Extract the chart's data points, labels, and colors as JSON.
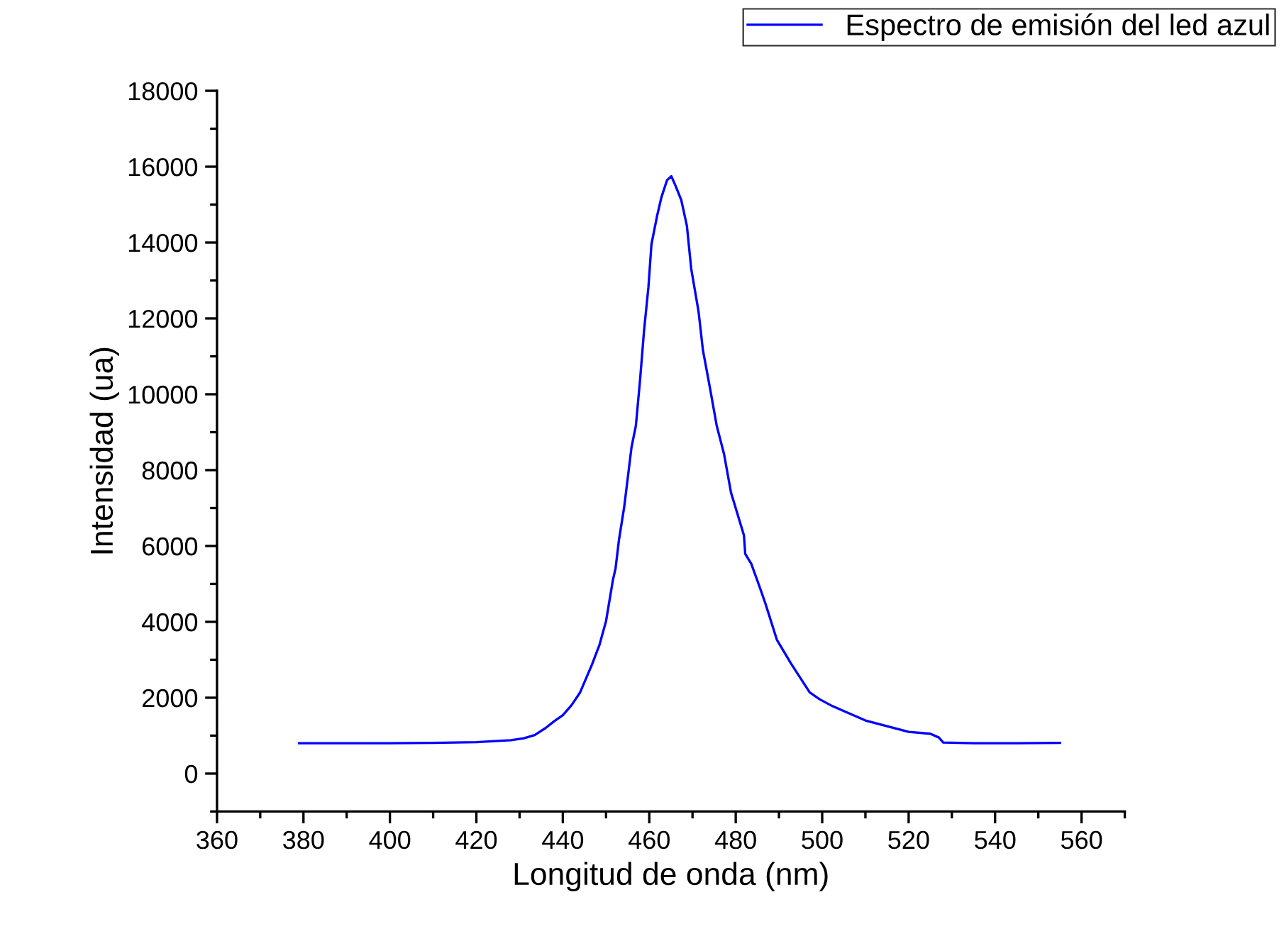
{
  "chart_data": {
    "type": "line",
    "xlabel": "Longitud de onda (nm)",
    "ylabel": "Intensidad (ua)",
    "xlim": [
      360,
      570
    ],
    "xticks": [
      360,
      380,
      400,
      420,
      440,
      460,
      480,
      500,
      520,
      540,
      560
    ],
    "ylim": [
      -1000,
      18000
    ],
    "yticks": [
      0,
      2000,
      4000,
      6000,
      8000,
      10000,
      12000,
      14000,
      16000,
      18000
    ],
    "grid": false,
    "legend": "top right",
    "marker": "none",
    "line_style": "solid",
    "series": [
      {
        "name": "Espectro de emisión del led azul",
        "color": "#0000ff",
        "x": [
          379,
          390,
          400,
          410,
          420,
          425,
          428,
          431,
          433.5,
          436,
          438,
          440,
          442,
          444,
          446.7,
          448.5,
          450,
          451.6,
          452.2,
          453,
          454.2,
          455.9,
          456.9,
          457.9,
          458.8,
          459.8,
          460.5,
          461.8,
          462.8,
          464.1,
          465.1,
          466.1,
          467.4,
          468.7,
          469.7,
          471.4,
          472.4,
          474,
          475.6,
          477.3,
          478.9,
          481.9,
          482.2,
          483.6,
          485.5,
          486.9,
          489.5,
          492.8,
          497.1,
          499.4,
          502,
          505,
          510,
          515,
          520,
          525,
          527,
          528,
          535,
          545,
          555
        ],
        "values": [
          800,
          800,
          800,
          810,
          830,
          860,
          880,
          930,
          1015,
          1200,
          1380,
          1540,
          1800,
          2140,
          2860,
          3400,
          4020,
          5110,
          5410,
          6170,
          7030,
          8610,
          9170,
          10420,
          11690,
          12820,
          13950,
          14700,
          15190,
          15640,
          15750,
          15490,
          15120,
          14440,
          13310,
          12180,
          11170,
          10190,
          9170,
          8420,
          7410,
          6280,
          5790,
          5530,
          4930,
          4470,
          3530,
          2900,
          2140,
          1960,
          1800,
          1650,
          1400,
          1250,
          1100,
          1050,
          950,
          820,
          800,
          800,
          810
        ]
      }
    ]
  }
}
